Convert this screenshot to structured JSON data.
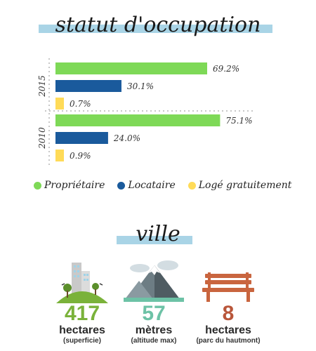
{
  "titles": {
    "occupation": "statut d'occupation",
    "ville": "ville"
  },
  "chart_data": {
    "type": "bar",
    "orientation": "horizontal",
    "groups": [
      "2015",
      "2010"
    ],
    "series": [
      {
        "name": "Propriétaire",
        "color": "#7ed957",
        "values": [
          69.2,
          75.1
        ],
        "labels": [
          "69.2%",
          "75.1%"
        ]
      },
      {
        "name": "Locataire",
        "color": "#1a5a9c",
        "values": [
          30.1,
          24.0
        ],
        "labels": [
          "30.1%",
          "24.0%"
        ]
      },
      {
        "name": "Logé gratuitement",
        "color": "#ffdb58",
        "values": [
          0.7,
          0.9
        ],
        "labels": [
          "0.7%",
          "0.9%"
        ]
      }
    ],
    "xlim": [
      0,
      100
    ],
    "legend_position": "bottom"
  },
  "stats": [
    {
      "value": "417",
      "unit": "hectares",
      "sub": "(superficie)",
      "color": "#7ab23a",
      "icon": "city-hill-icon"
    },
    {
      "value": "57",
      "unit": "mètres",
      "sub": "(altitude max)",
      "color": "#6dc2a6",
      "icon": "mountain-icon"
    },
    {
      "value": "8",
      "unit": "hectares",
      "sub": "(parc du hautmont)",
      "color": "#b9563a",
      "icon": "bench-icon"
    }
  ]
}
